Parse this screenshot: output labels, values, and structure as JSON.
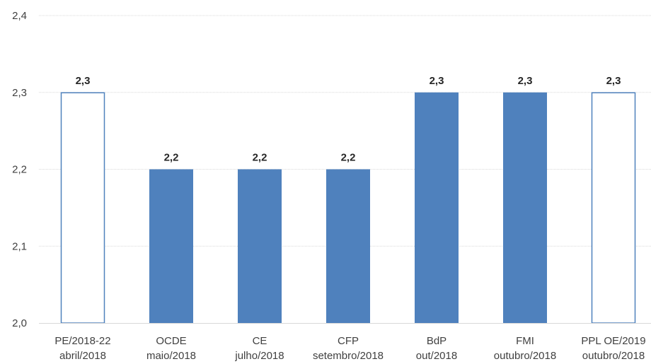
{
  "chart_data": {
    "type": "bar",
    "categories": [
      [
        "PE/2018-22",
        "abril/2018"
      ],
      [
        "OCDE",
        "maio/2018"
      ],
      [
        "CE",
        "julho/2018"
      ],
      [
        "CFP",
        "setembro/2018"
      ],
      [
        "BdP",
        "out/2018"
      ],
      [
        "FMI",
        "outubro/2018"
      ],
      [
        "PPL OE/2019",
        "outubro/2018"
      ]
    ],
    "values": [
      2.3,
      2.2,
      2.2,
      2.2,
      2.3,
      2.3,
      2.3
    ],
    "data_labels": [
      "2,3",
      "2,2",
      "2,2",
      "2,2",
      "2,3",
      "2,3",
      "2,3"
    ],
    "bar_style": [
      "outline",
      "filled",
      "filled",
      "filled",
      "filled",
      "filled",
      "outline"
    ],
    "ylim": [
      2.0,
      2.4
    ],
    "yticks": [
      2.0,
      2.1,
      2.2,
      2.3,
      2.4
    ],
    "ytick_labels": [
      "2,0",
      "2,1",
      "2,2",
      "2,3",
      "2,4"
    ],
    "grid": true,
    "colors": {
      "fill": "#4f81bd",
      "outline": "#4f81bd",
      "grid": "#d9d9d9"
    }
  }
}
